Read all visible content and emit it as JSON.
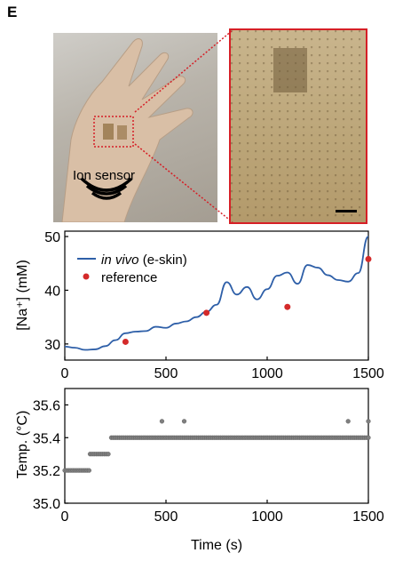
{
  "panel_label": "E",
  "photo": {
    "callout_label": "Ion sensor",
    "hand_image": "photo-of-hand-with-ion-sensor",
    "zoom_image": "magnified-sensor-patch",
    "zoom_border_color": "#d61f26"
  },
  "chart_data": [
    {
      "type": "line",
      "title": "",
      "xlabel": "",
      "ylabel": "[Na⁺] (mM)",
      "xlim": [
        0,
        1500
      ],
      "ylim": [
        27,
        51
      ],
      "xticks": [
        "0",
        "500",
        "1000",
        "1500"
      ],
      "yticks": [
        "30",
        "40",
        "50"
      ],
      "legend_position": "top-left",
      "series": [
        {
          "name_prefix": "in vivo",
          "name_suffix": " (e-skin)",
          "kind": "line",
          "color": "#2e5fa8",
          "x": [
            0,
            50,
            100,
            150,
            200,
            250,
            300,
            350,
            400,
            450,
            500,
            550,
            600,
            650,
            700,
            750,
            800,
            850,
            900,
            950,
            1000,
            1050,
            1100,
            1150,
            1200,
            1250,
            1300,
            1350,
            1400,
            1450,
            1500
          ],
          "y": [
            29.5,
            29.3,
            28.9,
            29.0,
            29.6,
            30.7,
            32.0,
            32.3,
            32.4,
            33.2,
            33.0,
            33.8,
            34.2,
            35.0,
            36.0,
            37.3,
            41.5,
            39.2,
            40.6,
            38.3,
            40.2,
            42.7,
            43.3,
            41.2,
            44.7,
            44.2,
            42.8,
            41.9,
            41.6,
            43.2,
            50.0
          ]
        },
        {
          "name": "reference",
          "kind": "scatter",
          "color": "#d42a2a",
          "x": [
            300,
            700,
            1100,
            1500
          ],
          "y": [
            30.4,
            35.8,
            36.9,
            45.8
          ]
        }
      ]
    },
    {
      "type": "scatter",
      "title": "",
      "xlabel": "Time (s)",
      "ylabel": "Temp. (°C)",
      "xlim": [
        0,
        1500
      ],
      "ylim": [
        35.0,
        35.7
      ],
      "xticks": [
        "0",
        "500",
        "1000",
        "1500"
      ],
      "yticks": [
        "35.0",
        "35.2",
        "35.4",
        "35.6"
      ],
      "marker_color": "#7f7f7f",
      "series": [
        {
          "name": "temperature",
          "segments": [
            {
              "x_start": 0,
              "x_end": 125,
              "step": 10,
              "y": 35.2
            },
            {
              "x_start": 125,
              "x_end": 220,
              "step": 10,
              "y": 35.3
            },
            {
              "x_start": 230,
              "x_end": 1500,
              "step": 10,
              "y": 35.4
            }
          ],
          "extra_points": [
            {
              "x": 480,
              "y": 35.5
            },
            {
              "x": 590,
              "y": 35.5
            },
            {
              "x": 1400,
              "y": 35.5
            },
            {
              "x": 1500,
              "y": 35.5
            }
          ]
        }
      ]
    }
  ]
}
